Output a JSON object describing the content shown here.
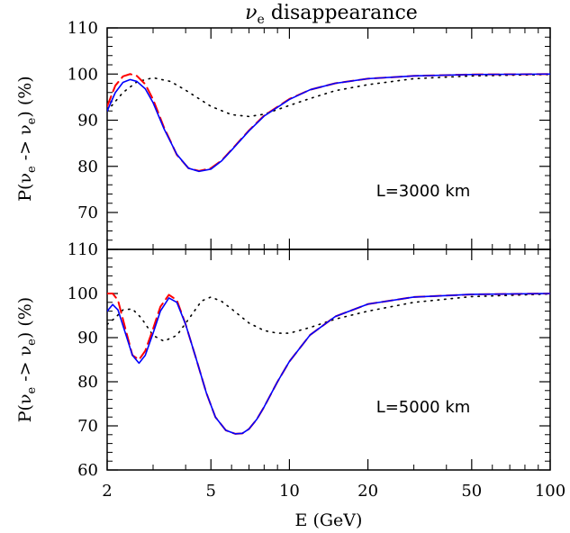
{
  "chart_data": {
    "type": "line",
    "title": "ν",
    "title_sub": "e",
    "title_rest": " disappearance",
    "xlabel": "E (GeV)",
    "ylabel_parts": [
      "P(ν",
      "e",
      " -> ν",
      "e",
      ") (%)"
    ],
    "x_scale": "log",
    "xlim": [
      2,
      100
    ],
    "x_ticks": [
      2,
      5,
      10,
      20,
      50,
      100
    ],
    "x_tick_labels": [
      "2",
      "5",
      "10",
      "20",
      "50",
      "100"
    ],
    "grid": false,
    "colors": {
      "solid": "#0000ff",
      "dashed": "#ff0000",
      "dotted": "#000000"
    },
    "panels": [
      {
        "annotation": "L=3000 km",
        "ylim": [
          62,
          110
        ],
        "y_ticks": [
          70,
          80,
          90,
          100,
          110
        ],
        "y_tick_labels": [
          "70",
          "80",
          "90",
          "100",
          "110"
        ],
        "series": [
          {
            "style": "dotted",
            "color": "#000000",
            "x": [
              2,
              2.3,
              2.6,
              3.0,
              3.5,
              4.0,
              5.0,
              6.0,
              7.0,
              8.0,
              10,
              12,
              15,
              20,
              30,
              50,
              100
            ],
            "y": [
              92,
              96,
              98.3,
              99.2,
              98.4,
              96.5,
              93,
              91.2,
              90.8,
              91.3,
              93.2,
              94.7,
              96.4,
              97.7,
              99,
              99.6,
              99.9
            ]
          },
          {
            "style": "dashed",
            "color": "#ff0000",
            "x": [
              2,
              2.15,
              2.3,
              2.45,
              2.6,
              2.8,
              3.0,
              3.3,
              3.7,
              4.1,
              4.5,
              5.0,
              5.5,
              6.0,
              7.0,
              8.0,
              10,
              12,
              15,
              20,
              30,
              50,
              100
            ],
            "y": [
              93,
              97.5,
              99.5,
              100,
              99.6,
              97.8,
              94.5,
              88.5,
              82.5,
              79.6,
              79.0,
              79.6,
              81.3,
              83.6,
              87.8,
              91.0,
              94.6,
              96.6,
              98.0,
              99.0,
              99.6,
              99.9,
              100
            ]
          },
          {
            "style": "solid",
            "color": "#0000ff",
            "x": [
              2,
              2.15,
              2.3,
              2.45,
              2.6,
              2.8,
              3.0,
              3.3,
              3.7,
              4.1,
              4.5,
              5.0,
              5.5,
              6.0,
              7.0,
              8.0,
              10,
              12,
              15,
              20,
              30,
              50,
              100
            ],
            "y": [
              92,
              96,
              98.2,
              98.8,
              98.4,
              96.8,
              93.8,
              88.2,
              82.6,
              79.6,
              78.9,
              79.4,
              81.2,
              83.5,
              87.7,
              90.9,
              94.5,
              96.6,
              98.0,
              99.0,
              99.6,
              99.9,
              100
            ]
          }
        ]
      },
      {
        "annotation": "L=5000 km",
        "ylim": [
          60,
          110
        ],
        "y_ticks": [
          60,
          70,
          80,
          90,
          100,
          110
        ],
        "y_tick_labels": [
          "60",
          "70",
          "80",
          "90",
          "100",
          "110"
        ],
        "series": [
          {
            "style": "dotted",
            "color": "#000000",
            "x": [
              2,
              2.15,
              2.3,
              2.5,
              2.7,
              3.0,
              3.3,
              3.7,
              4.2,
              4.6,
              5.0,
              5.5,
              6.0,
              7.0,
              8.0,
              9.0,
              10,
              12,
              15,
              20,
              30,
              50,
              100
            ],
            "y": [
              93,
              94.5,
              96.3,
              96.5,
              94.5,
              90.5,
              89.2,
              90.5,
              95,
              98.3,
              99.2,
              98.2,
              96.5,
              93.3,
              91.6,
              91.0,
              91.0,
              92.3,
              94.2,
              96.0,
              98.0,
              99.3,
              99.9
            ]
          },
          {
            "style": "dashed",
            "color": "#ff0000",
            "x": [
              2,
              2.1,
              2.2,
              2.35,
              2.5,
              2.65,
              2.8,
              3.0,
              3.2,
              3.45,
              3.7,
              4.0,
              4.4,
              4.8,
              5.2,
              5.7,
              6.2,
              6.6,
              7.0,
              7.5,
              8.0,
              9.0,
              10,
              12,
              15,
              20,
              30,
              50,
              100
            ],
            "y": [
              100,
              100,
              98.5,
              92,
              86,
              85,
              87,
              92,
              97,
              99.7,
              98.5,
              93,
              85,
              77.5,
              72,
              69,
              68.2,
              68.3,
              69.3,
              71.5,
              74.3,
              80,
              84.6,
              90.6,
              94.8,
              97.6,
              99.2,
              99.8,
              100
            ]
          },
          {
            "style": "solid",
            "color": "#0000ff",
            "x": [
              2,
              2.1,
              2.2,
              2.35,
              2.5,
              2.65,
              2.8,
              3.0,
              3.2,
              3.45,
              3.7,
              4.0,
              4.4,
              4.8,
              5.2,
              5.7,
              6.2,
              6.6,
              7.0,
              7.5,
              8.0,
              9.0,
              10,
              12,
              15,
              20,
              30,
              50,
              100
            ],
            "y": [
              96,
              97.5,
              96.3,
              91,
              86,
              84.2,
              86,
              91,
              96,
              99,
              98,
              93,
              85,
              77.5,
              72,
              69,
              68.2,
              68.3,
              69.3,
              71.5,
              74.3,
              80,
              84.6,
              90.6,
              94.8,
              97.6,
              99.2,
              99.8,
              100
            ]
          }
        ]
      }
    ]
  }
}
